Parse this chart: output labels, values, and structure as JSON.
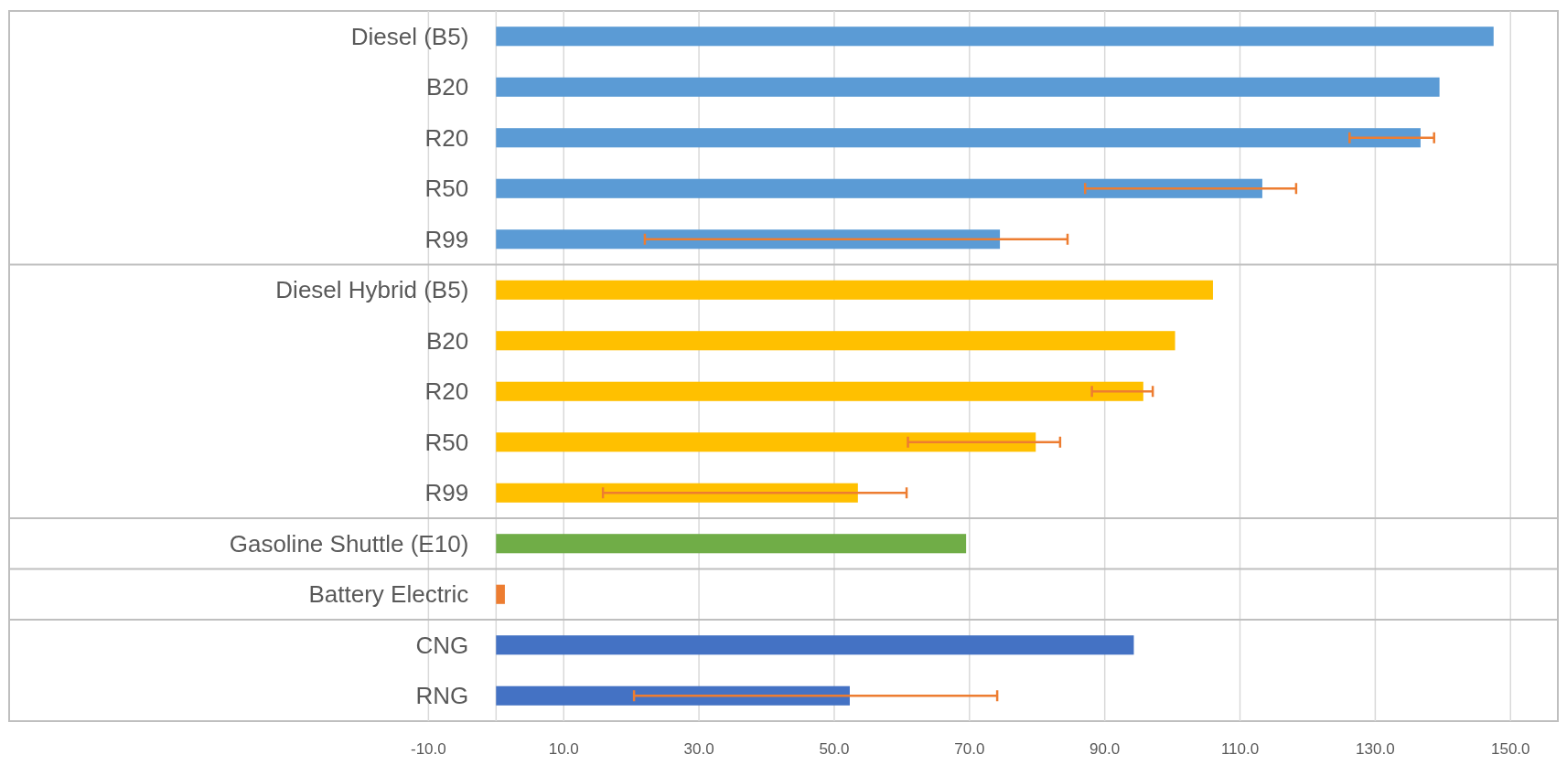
{
  "chart_data": {
    "type": "bar",
    "orientation": "horizontal",
    "categories": [
      "Diesel (B5)",
      "B20",
      "R20",
      "R50",
      "R99",
      "Diesel Hybrid (B5)",
      "B20",
      "R20",
      "R50",
      "R99",
      "Gasoline Shuttle (E10)",
      "Battery Electric",
      "CNG",
      "RNG"
    ],
    "values": [
      147.5,
      139.5,
      136.7,
      113.3,
      74.5,
      106.0,
      100.4,
      95.7,
      79.8,
      53.5,
      69.5,
      1.3,
      94.3,
      52.3
    ],
    "colors": [
      "#5b9bd5",
      "#5b9bd5",
      "#5b9bd5",
      "#5b9bd5",
      "#5b9bd5",
      "#ffc000",
      "#ffc000",
      "#ffc000",
      "#ffc000",
      "#ffc000",
      "#70ad47",
      "#ed7d31",
      "#4472c4",
      "#4472c4"
    ],
    "errors": [
      null,
      null,
      [
        126.2,
        138.7
      ],
      [
        87.1,
        118.3
      ],
      [
        22.0,
        84.5
      ],
      null,
      null,
      [
        88.1,
        97.1
      ],
      [
        60.9,
        83.4
      ],
      [
        15.8,
        60.7
      ],
      null,
      null,
      null,
      [
        20.4,
        74.1
      ]
    ],
    "xlim": [
      -72,
      157
    ],
    "xticks": [
      {
        "value": -10,
        "label": "-10.0"
      },
      {
        "value": 10,
        "label": "10.0"
      },
      {
        "value": 30,
        "label": "30.0"
      },
      {
        "value": 50,
        "label": "50.0"
      },
      {
        "value": 70,
        "label": "70.0"
      },
      {
        "value": 90,
        "label": "90.0"
      },
      {
        "value": 110,
        "label": "110.0"
      },
      {
        "value": 130,
        "label": "130.0"
      },
      {
        "value": 150,
        "label": "150.0"
      }
    ],
    "grid": "x"
  }
}
